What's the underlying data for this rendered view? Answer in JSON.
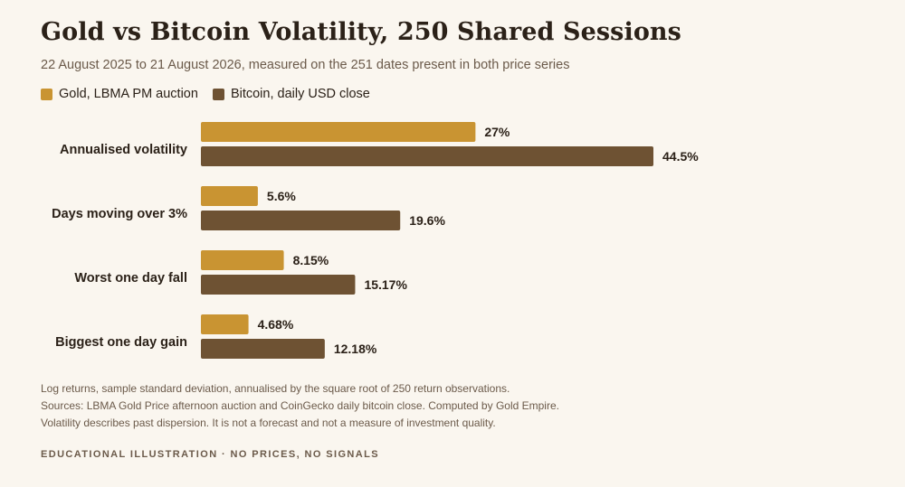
{
  "title": "Gold vs Bitcoin Volatility, 250 Shared Sessions",
  "subtitle": "22 August 2025 to 21 August 2026, measured on the 251 dates present in both price series",
  "colors": {
    "gold": "#c99432",
    "bitcoin": "#6e5233",
    "background": "#faf6ef",
    "text": "#2b2118",
    "muted": "#6b5a4a"
  },
  "chart_data": {
    "type": "bar",
    "orientation": "horizontal",
    "categories": [
      "Annualised volatility",
      "Days moving over 3%",
      "Worst one day fall",
      "Biggest one day gain"
    ],
    "series": [
      {
        "name": "Gold, LBMA PM auction",
        "values": [
          27,
          5.6,
          8.15,
          4.68
        ],
        "labels": [
          "27%",
          "5.6%",
          "8.15%",
          "4.68%"
        ]
      },
      {
        "name": "Bitcoin, daily USD close",
        "values": [
          44.5,
          19.6,
          15.17,
          12.18
        ],
        "labels": [
          "44.5%",
          "19.6%",
          "15.17%",
          "12.18%"
        ]
      }
    ],
    "xlim": [
      0,
      44.5
    ],
    "grid": false,
    "legend": "top-left",
    "axis": "none",
    "value_labels": "end-of-bar"
  },
  "notes": [
    "Log returns, sample standard deviation, annualised by the square root of 250 return observations.",
    "Sources: LBMA Gold Price afternoon auction and CoinGecko daily bitcoin close. Computed by Gold Empire.",
    "Volatility describes past dispersion. It is not a forecast and not a measure of investment quality."
  ],
  "footer": "EDUCATIONAL ILLUSTRATION · NO PRICES, NO SIGNALS"
}
